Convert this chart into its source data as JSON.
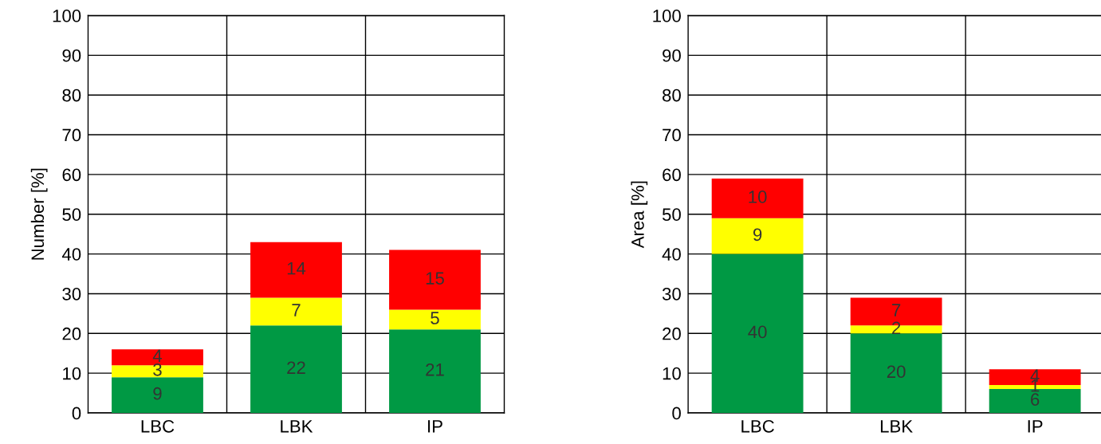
{
  "chart_data": [
    {
      "type": "bar",
      "stacked": true,
      "ylabel": "Number [%]",
      "categories": [
        "LBC",
        "LBK",
        "IP"
      ],
      "ylim": [
        0,
        100
      ],
      "yticks": [
        0,
        10,
        20,
        30,
        40,
        50,
        60,
        70,
        80,
        90,
        100
      ],
      "grid": true,
      "data_labels": true,
      "series": [
        {
          "color": "#009944",
          "values": [
            9,
            22,
            21
          ]
        },
        {
          "color": "#ffff00",
          "values": [
            3,
            7,
            5
          ]
        },
        {
          "color": "#ff0000",
          "values": [
            4,
            14,
            15
          ]
        }
      ]
    },
    {
      "type": "bar",
      "stacked": true,
      "ylabel": "Area [%]",
      "categories": [
        "LBC",
        "LBK",
        "IP"
      ],
      "ylim": [
        0,
        100
      ],
      "yticks": [
        0,
        10,
        20,
        30,
        40,
        50,
        60,
        70,
        80,
        90,
        100
      ],
      "grid": true,
      "data_labels": true,
      "series": [
        {
          "color": "#009944",
          "values": [
            40,
            20,
            6
          ]
        },
        {
          "color": "#ffff00",
          "values": [
            9,
            2,
            1
          ]
        },
        {
          "color": "#ff0000",
          "values": [
            10,
            7,
            4
          ]
        }
      ]
    }
  ]
}
